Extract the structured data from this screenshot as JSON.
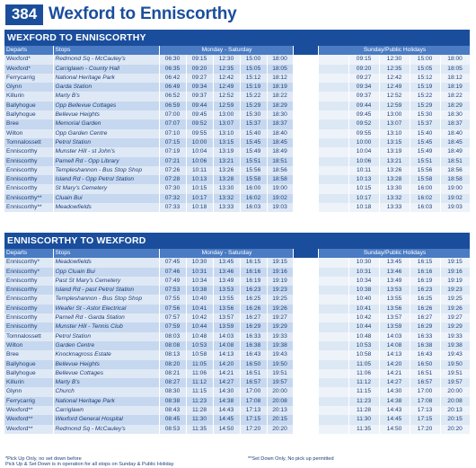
{
  "route": {
    "number": "384",
    "title": "Wexford to Enniscorthy"
  },
  "sections": [
    {
      "title": "WEXFORD TO ENNISCORTHY",
      "headers": {
        "departs": "Departs",
        "stops": "Stops",
        "weekday": "Monday - Saturday",
        "sunday": "Sunday/Public Holidays"
      },
      "rows": [
        {
          "departs": "Wexford*",
          "stop": "Redmond Sq - McCauley's",
          "weekday": [
            "06:30",
            "09:15",
            "12:30",
            "15:00",
            "18:00"
          ],
          "sunday": [
            "09:15",
            "12:30",
            "15:00",
            "18:00"
          ]
        },
        {
          "departs": "Wexford*",
          "stop": "Carriglawn - County Hall",
          "weekday": [
            "06:35",
            "09:20",
            "12:35",
            "15:05",
            "18:05"
          ],
          "sunday": [
            "09:20",
            "12:35",
            "15:05",
            "18:05"
          ]
        },
        {
          "departs": "Ferrycarrig",
          "stop": "National Heritage Park",
          "weekday": [
            "06:42",
            "09:27",
            "12:42",
            "15:12",
            "18:12"
          ],
          "sunday": [
            "09:27",
            "12:42",
            "15:12",
            "18:12"
          ]
        },
        {
          "departs": "Glynn",
          "stop": "Garda Station",
          "weekday": [
            "06:49",
            "09:34",
            "12:49",
            "15:19",
            "18:19"
          ],
          "sunday": [
            "09:34",
            "12:49",
            "15:19",
            "18:19"
          ]
        },
        {
          "departs": "Killurin",
          "stop": "Marty B's",
          "weekday": [
            "06:52",
            "09:37",
            "12:52",
            "15:22",
            "18:22"
          ],
          "sunday": [
            "09:37",
            "12:52",
            "15:22",
            "18:22"
          ]
        },
        {
          "departs": "Ballyhogue",
          "stop": "Opp Bellevue Cottages",
          "weekday": [
            "06:59",
            "09:44",
            "12:59",
            "15:29",
            "18:29"
          ],
          "sunday": [
            "09:44",
            "12:59",
            "15:29",
            "18:29"
          ]
        },
        {
          "departs": "Ballyhogue",
          "stop": "Bellevue Heights",
          "weekday": [
            "07:00",
            "09:45",
            "13:00",
            "15:30",
            "18:30"
          ],
          "sunday": [
            "09:45",
            "13:00",
            "15:30",
            "18:30"
          ]
        },
        {
          "departs": "Bree",
          "stop": "Memorial Garden",
          "weekday": [
            "07:07",
            "09:52",
            "13:07",
            "15:37",
            "18:37"
          ],
          "sunday": [
            "09:52",
            "13:07",
            "15:37",
            "18:37"
          ]
        },
        {
          "departs": "Wilton",
          "stop": "Opp Garden Centre",
          "weekday": [
            "07:10",
            "09:55",
            "13:10",
            "15:40",
            "18:40"
          ],
          "sunday": [
            "09:55",
            "13:10",
            "15:40",
            "18:40"
          ]
        },
        {
          "departs": "Tomnalossett",
          "stop": "Petrol Station",
          "weekday": [
            "07:15",
            "10:00",
            "13:15",
            "15:45",
            "18:45"
          ],
          "sunday": [
            "10:00",
            "13:15",
            "15:45",
            "18:45"
          ]
        },
        {
          "departs": "Enniscorthy",
          "stop": "Munster Hill - st John's",
          "weekday": [
            "07:19",
            "10:04",
            "13:19",
            "15:49",
            "18:49"
          ],
          "sunday": [
            "10:04",
            "13:19",
            "15:49",
            "18:49"
          ]
        },
        {
          "departs": "Enniscorthy",
          "stop": "Parnell Rd - Opp Library",
          "weekday": [
            "07:21",
            "10:06",
            "13:21",
            "15:51",
            "18:51"
          ],
          "sunday": [
            "10:06",
            "13:21",
            "15:51",
            "18:51"
          ]
        },
        {
          "departs": "Enniscorthy",
          "stop": "Templeshannon - Bus Stop Shop",
          "weekday": [
            "07:26",
            "10:11",
            "13:26",
            "15:56",
            "18:56"
          ],
          "sunday": [
            "10:11",
            "13:26",
            "15:56",
            "18:56"
          ]
        },
        {
          "departs": "Enniscorthy",
          "stop": "Island Rd - Opp Petrol Station",
          "weekday": [
            "07:28",
            "10:13",
            "13:28",
            "15:58",
            "18:58"
          ],
          "sunday": [
            "10:13",
            "13:28",
            "15:58",
            "18:58"
          ]
        },
        {
          "departs": "Enniscorthy",
          "stop": "St Mary's Cemetery",
          "weekday": [
            "07:30",
            "10:15",
            "13:30",
            "16:00",
            "19:00"
          ],
          "sunday": [
            "10:15",
            "13:30",
            "16:00",
            "19:00"
          ]
        },
        {
          "departs": "Enniscorthy**",
          "stop": "Cluain Bui",
          "weekday": [
            "07:32",
            "10:17",
            "13:32",
            "16:02",
            "19:02"
          ],
          "sunday": [
            "10:17",
            "13:32",
            "16:02",
            "19:02"
          ]
        },
        {
          "departs": "Enniscorthy**",
          "stop": "Meadowfields",
          "weekday": [
            "07:33",
            "10:18",
            "13:33",
            "16:03",
            "19:03"
          ],
          "sunday": [
            "10:18",
            "13:33",
            "16:03",
            "19:03"
          ]
        }
      ]
    },
    {
      "title": "ENNISCORTHY TO WEXFORD",
      "headers": {
        "departs": "Departs",
        "stops": "Stops",
        "weekday": "Monday - Saturday",
        "sunday": "Sunday/Public Holidays"
      },
      "rows": [
        {
          "departs": "Enniscorthy*",
          "stop": "Meadowfields",
          "weekday": [
            "07:45",
            "10:30",
            "13:45",
            "16:15",
            "19:15"
          ],
          "sunday": [
            "10:30",
            "13:45",
            "16:15",
            "19:15"
          ]
        },
        {
          "departs": "Enniscorthy*",
          "stop": "Opp Cluain Bui",
          "weekday": [
            "07:46",
            "10:31",
            "13:46",
            "16:16",
            "19:16"
          ],
          "sunday": [
            "10:31",
            "13:46",
            "16:16",
            "19:16"
          ]
        },
        {
          "departs": "Enniscorthy",
          "stop": "Past St Mary's Cemetery",
          "weekday": [
            "07:49",
            "10:34",
            "13:49",
            "16:19",
            "19:19"
          ],
          "sunday": [
            "10:34",
            "13:49",
            "16:19",
            "19:19"
          ]
        },
        {
          "departs": "Enniscorthy",
          "stop": "Island Rd - past Petrol Station",
          "weekday": [
            "07:53",
            "10:38",
            "13:53",
            "16:23",
            "19:23"
          ],
          "sunday": [
            "10:38",
            "13:53",
            "16:23",
            "19:23"
          ]
        },
        {
          "departs": "Enniscorthy",
          "stop": "Templeshannon - Bus Stop Shop",
          "weekday": [
            "07:55",
            "10:40",
            "13:55",
            "16:25",
            "19:25"
          ],
          "sunday": [
            "10:40",
            "13:55",
            "16:25",
            "19:25"
          ]
        },
        {
          "departs": "Enniscorthy",
          "stop": "Weafer St - Astor Electrical",
          "weekday": [
            "07:56",
            "10:41",
            "13:56",
            "16:26",
            "19:26"
          ],
          "sunday": [
            "10:41",
            "13:56",
            "16:26",
            "19:26"
          ]
        },
        {
          "departs": "Enniscorthy",
          "stop": "Parnell Rd - Garda Station",
          "weekday": [
            "07:57",
            "10:42",
            "13:57",
            "16:27",
            "19:27"
          ],
          "sunday": [
            "10:42",
            "13:57",
            "16:27",
            "19:27"
          ]
        },
        {
          "departs": "Enniscorthy",
          "stop": "Munster Hill - Tennis Club",
          "weekday": [
            "07:59",
            "10:44",
            "13:59",
            "16:29",
            "19:29"
          ],
          "sunday": [
            "10:44",
            "13:59",
            "16:29",
            "19:29"
          ]
        },
        {
          "departs": "Tomnalossett",
          "stop": "Petrol Station",
          "weekday": [
            "08:03",
            "10:48",
            "14:03",
            "16:33",
            "19:33"
          ],
          "sunday": [
            "10:48",
            "14:03",
            "16:33",
            "19:33"
          ]
        },
        {
          "departs": "Wilton",
          "stop": "Garden Centre",
          "weekday": [
            "08:08",
            "10:53",
            "14:08",
            "16:38",
            "19:38"
          ],
          "sunday": [
            "10:53",
            "14:08",
            "16:38",
            "19:38"
          ]
        },
        {
          "departs": "Bree",
          "stop": "Knocknagross Estate",
          "weekday": [
            "08:13",
            "10:58",
            "14:13",
            "16:43",
            "19:43"
          ],
          "sunday": [
            "10:58",
            "14:13",
            "16:43",
            "19:43"
          ]
        },
        {
          "departs": "Ballyhogue",
          "stop": "Bellevue Heights",
          "weekday": [
            "08:20",
            "11:05",
            "14:20",
            "16:50",
            "19:50"
          ],
          "sunday": [
            "11:05",
            "14:20",
            "16:50",
            "19:50"
          ]
        },
        {
          "departs": "Ballyhogue",
          "stop": "Bellevue Cottages",
          "weekday": [
            "08:21",
            "11:06",
            "14:21",
            "16:51",
            "19:51"
          ],
          "sunday": [
            "11:06",
            "14:21",
            "16:51",
            "19:51"
          ]
        },
        {
          "departs": "Killurin",
          "stop": "Marty B's",
          "weekday": [
            "08:27",
            "11:12",
            "14:27",
            "16:57",
            "19:57"
          ],
          "sunday": [
            "11:12",
            "14:27",
            "16:57",
            "19:57"
          ]
        },
        {
          "departs": "Glynn",
          "stop": "Church",
          "weekday": [
            "08:30",
            "11:15",
            "14:30",
            "17:00",
            "20:00"
          ],
          "sunday": [
            "11:15",
            "14:30",
            "17:00",
            "20:00"
          ]
        },
        {
          "departs": "Ferrycarrig",
          "stop": "National Heritage Park",
          "weekday": [
            "08:38",
            "11:23",
            "14:38",
            "17:08",
            "20:08"
          ],
          "sunday": [
            "11:23",
            "14:38",
            "17:08",
            "20:08"
          ]
        },
        {
          "departs": "Wexford**",
          "stop": "Carriglawn",
          "weekday": [
            "08:43",
            "11:28",
            "14:43",
            "17:13",
            "20:13"
          ],
          "sunday": [
            "11:28",
            "14:43",
            "17:13",
            "20:13"
          ]
        },
        {
          "departs": "Wexford**",
          "stop": "Wexford General Hospital",
          "weekday": [
            "08:45",
            "11:30",
            "14:45",
            "17:15",
            "20:15"
          ],
          "sunday": [
            "11:30",
            "14:45",
            "17:15",
            "20:15"
          ]
        },
        {
          "departs": "Wexford**",
          "stop": "Redmond Sq - McCauley's",
          "weekday": [
            "08:53",
            "11:35",
            "14:50",
            "17:20",
            "20:20"
          ],
          "sunday": [
            "11:35",
            "14:50",
            "17:20",
            "20:20"
          ]
        }
      ]
    }
  ],
  "footer": {
    "note_pickup": "*Pick Up Only, no set down before",
    "note_setdown_only": "**Set Down Only, No pick up permitted",
    "note_operation": "Pick Up & Set Down is in operation for all stops on Sunday & Public Holiday"
  }
}
